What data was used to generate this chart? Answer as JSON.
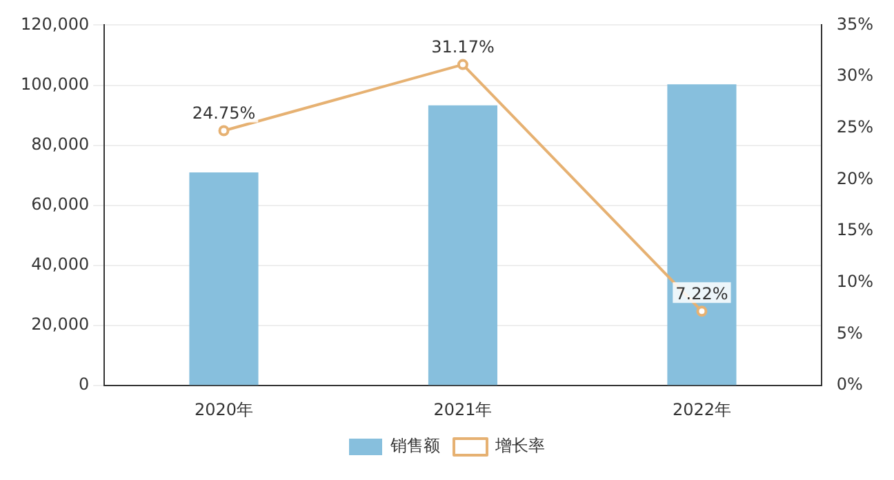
{
  "chart_data": {
    "type": "bar",
    "categories": [
      "2020年",
      "2021年",
      "2022年"
    ],
    "series": [
      {
        "name": "销售额",
        "color": "#87bfdd",
        "values": [
          71000,
          93300,
          100300
        ]
      },
      {
        "name": "增长率",
        "type": "line",
        "axis": "y2",
        "color": "#e6b172",
        "values": [
          24.75,
          31.17,
          7.22
        ],
        "value_labels": [
          "24.75%",
          "31.17%",
          "7.22%"
        ]
      }
    ],
    "ylim": [
      0,
      120000
    ],
    "yticks": [
      {
        "value": 0,
        "label": "0"
      },
      {
        "value": 20000,
        "label": "20,000"
      },
      {
        "value": 40000,
        "label": "40,000"
      },
      {
        "value": 60000,
        "label": "60,000"
      },
      {
        "value": 80000,
        "label": "80,000"
      },
      {
        "value": 100000,
        "label": "100,000"
      },
      {
        "value": 120000,
        "label": "120,000"
      }
    ],
    "y2lim": [
      0,
      35
    ],
    "y2ticks": [
      {
        "value": 0,
        "label": "0%"
      },
      {
        "value": 5,
        "label": "5%"
      },
      {
        "value": 10,
        "label": "10%"
      },
      {
        "value": 15,
        "label": "15%"
      },
      {
        "value": 20,
        "label": "20%"
      },
      {
        "value": 25,
        "label": "25%"
      },
      {
        "value": 30,
        "label": "30%"
      },
      {
        "value": 35,
        "label": "35%"
      }
    ],
    "grid": "y",
    "legend": "bottom",
    "marker": "circle"
  }
}
